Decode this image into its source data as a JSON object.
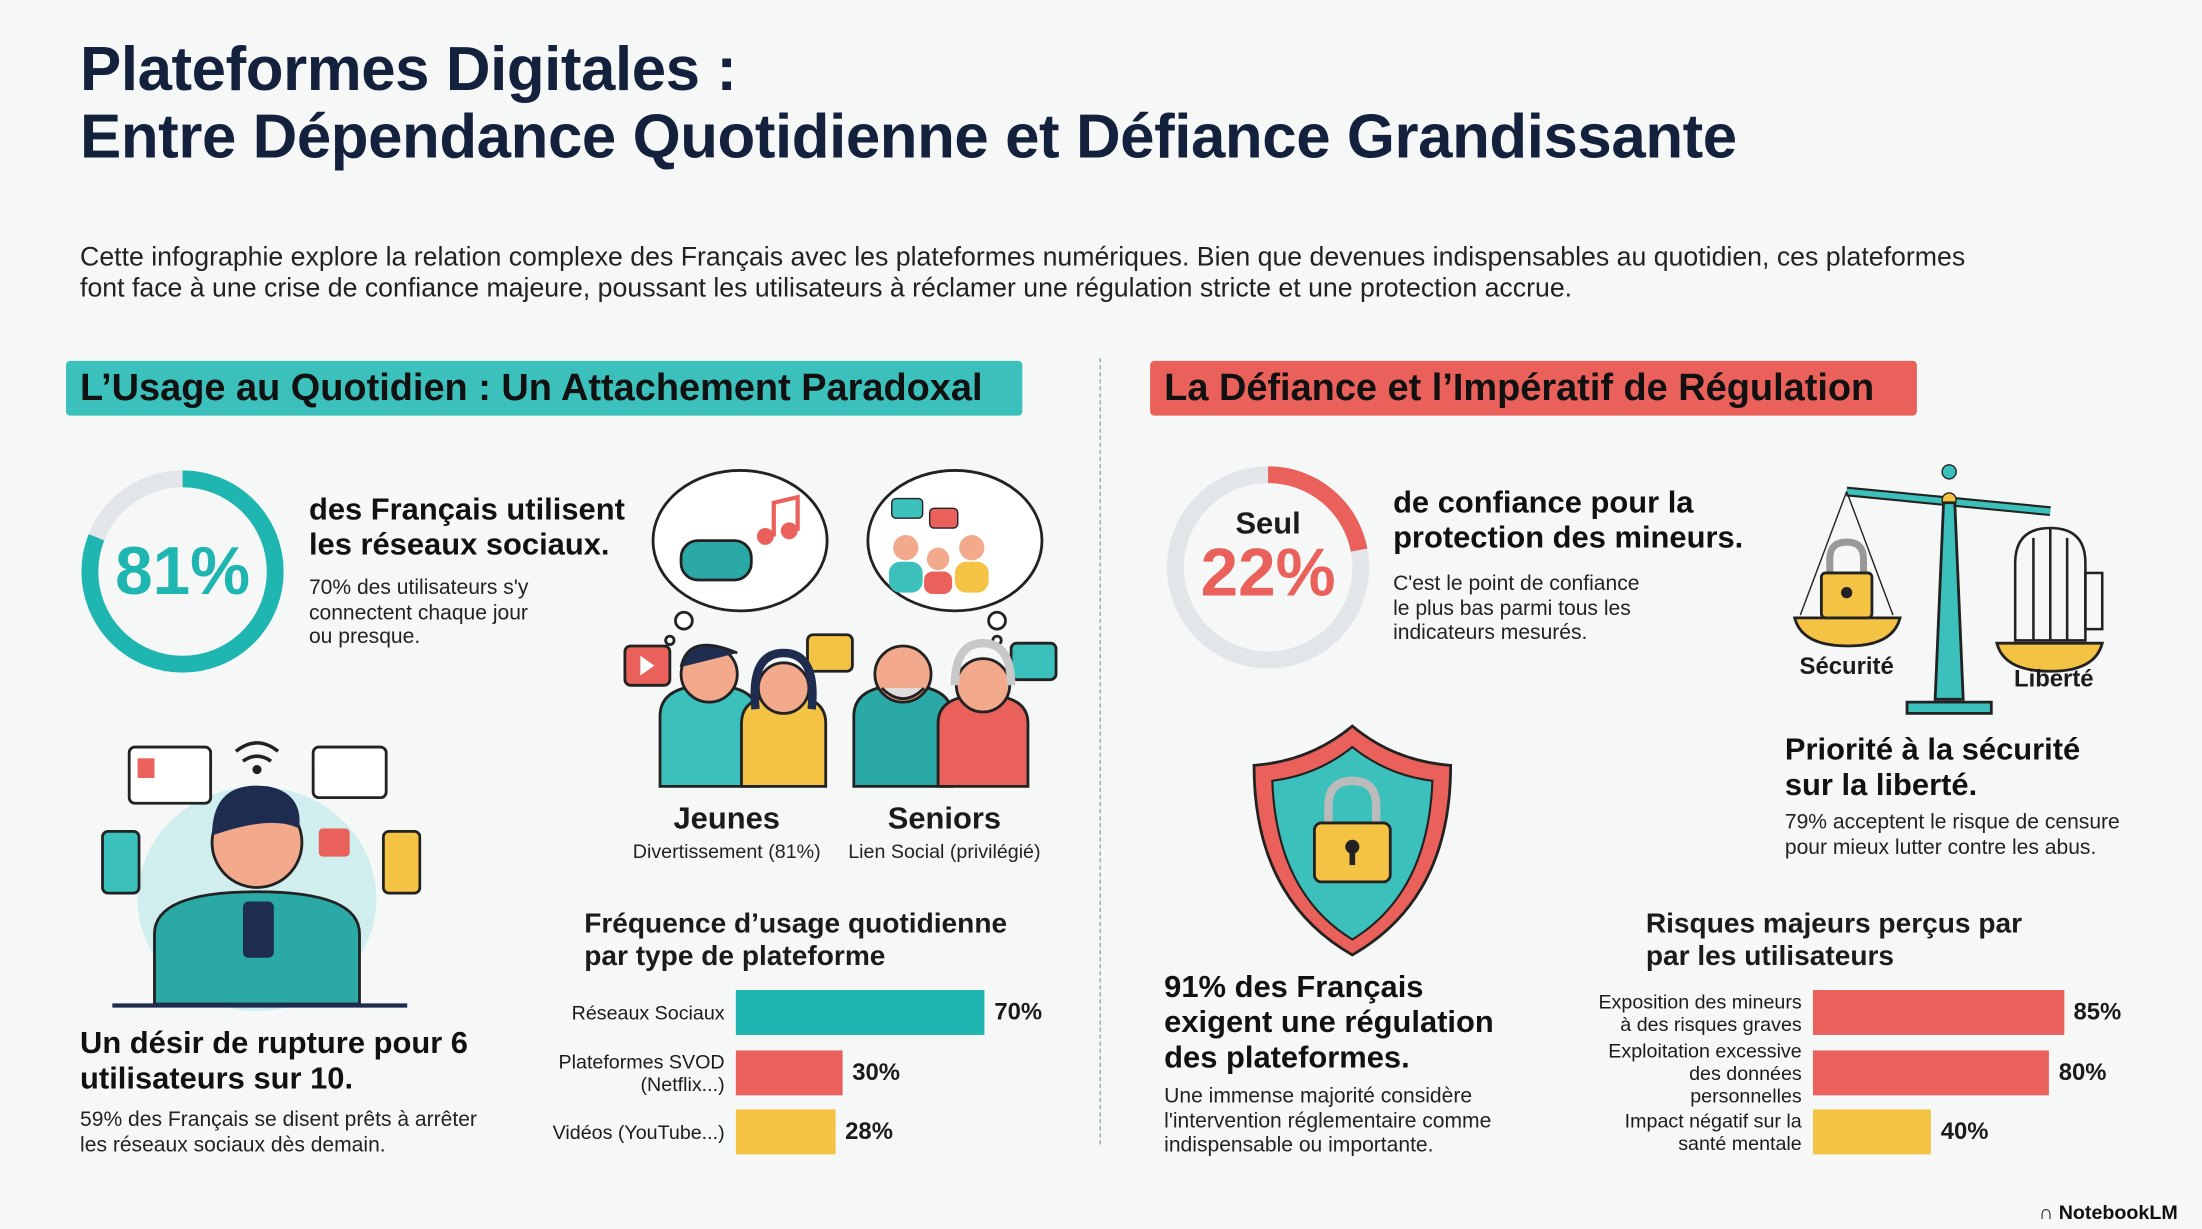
{
  "title": {
    "line1": "Plateformes Digitales :",
    "line2": "Entre Dépendance Quotidienne et Défiance Grandissante"
  },
  "intro": "Cette infographie explore la relation complexe des Français avec les plateformes numériques. Bien que devenues indispensables au quotidien, ces plateformes font face à une crise de confiance majeure, poussant les utilisateurs à réclamer une régulation stricte et une protection accrue.",
  "colors": {
    "teal": "#1fb5b0",
    "red": "#e9615a",
    "yellow": "#f5c343",
    "navy": "#14213d"
  },
  "left": {
    "header": "L’Usage au Quotidien : Un Attachement Paradoxal",
    "stat": {
      "value": "81%",
      "fraction": 0.81,
      "headline": "des Français utilisent les réseaux sociaux.",
      "detail": "70% des utilisateurs s'y connectent chaque jour ou presque."
    },
    "groups": [
      {
        "name": "Jeunes",
        "detail": "Divertissement (81%)"
      },
      {
        "name": "Seniors",
        "detail": "Lien Social (privilégié)"
      }
    ],
    "rupture": {
      "headline": "Un désir de rupture pour 6 utilisateurs sur 10.",
      "detail": "59% des Français se disent prêts à arrêter les réseaux sociaux dès demain."
    }
  },
  "right": {
    "header": "La Défiance et l’Impératif de Régulation",
    "stat": {
      "prefix": "Seul",
      "value": "22%",
      "fraction": 0.22,
      "headline": "de confiance pour la protection des mineurs.",
      "detail": "C'est le point de confiance le plus bas parmi tous les indicateurs mesurés."
    },
    "scale": {
      "left": "Sécurité",
      "right": "Liberté"
    },
    "priority": {
      "headline": "Priorité à la sécurité sur la liberté.",
      "detail": "79% acceptent le risque de censure pour mieux lutter contre les abus."
    },
    "regulation": {
      "headline": "91% des Français exigent une régulation des plateformes.",
      "detail": "Une immense majorité considère l'intervention réglementaire comme indispensable ou importante."
    }
  },
  "chart_data": [
    {
      "type": "bar",
      "orientation": "horizontal",
      "title": "Fréquence d’usage quotidienne par type de plateforme",
      "categories": [
        "Réseaux Sociaux",
        "Plateformes SVOD (Netflix...)",
        "Vidéos (YouTube...)"
      ],
      "values": [
        70,
        30,
        28
      ],
      "labels": [
        "70%",
        "30%",
        "28%"
      ],
      "colors": [
        "#1fb5b0",
        "#e9615a",
        "#f5c343"
      ],
      "xlim": [
        0,
        100
      ]
    },
    {
      "type": "bar",
      "orientation": "horizontal",
      "title": "Risques majeurs perçus par par les utilisateurs",
      "categories": [
        "Exposition des mineurs à des risques graves",
        "Exploitation excessive des données personnelles",
        "Impact négatif sur la santé mentale"
      ],
      "values": [
        85,
        80,
        40
      ],
      "labels": [
        "85%",
        "80%",
        "40%"
      ],
      "colors": [
        "#e9615a",
        "#e9615a",
        "#f5c343"
      ],
      "xlim": [
        0,
        100
      ]
    }
  ],
  "footer": {
    "brand": "NotebookLM"
  }
}
